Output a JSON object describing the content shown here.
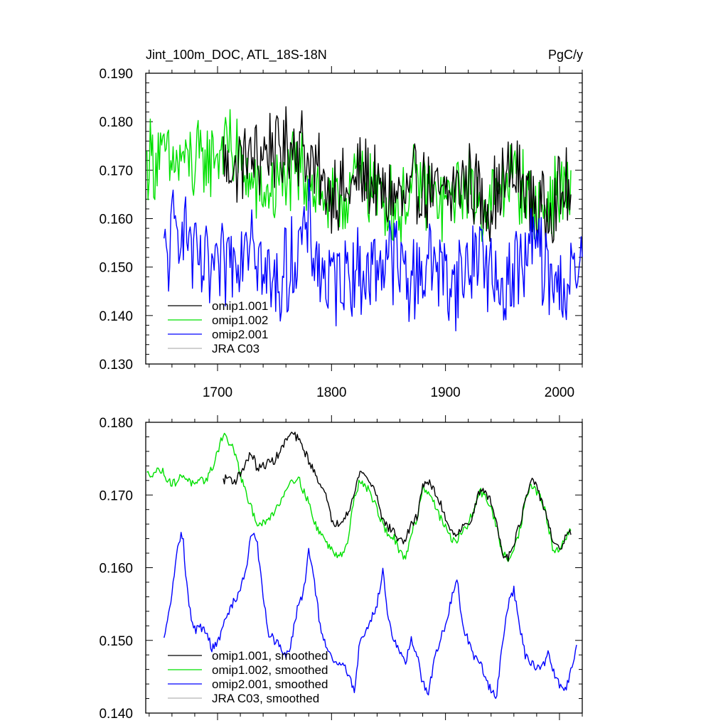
{
  "chart_data": [
    {
      "type": "line",
      "title": "Jint_100m_DOC, ATL_18S-18N",
      "units": "PgC/y",
      "xlabel": "",
      "ylabel": "",
      "xlim": [
        1637,
        2020
      ],
      "ylim": [
        0.13,
        0.19
      ],
      "xticks": [
        1700,
        1800,
        1900,
        2000
      ],
      "xtick_labels": [
        "1700",
        "1800",
        "1900",
        "2000"
      ],
      "yticks": [
        0.13,
        0.14,
        0.15,
        0.16,
        0.17,
        0.18,
        0.19
      ],
      "ytick_labels": [
        "0.130",
        "0.140",
        "0.150",
        "0.160",
        "0.170",
        "0.180",
        "0.190"
      ],
      "legend_position": "bottom-left",
      "legend": [
        "omip1.001",
        "omip1.002",
        "omip2.001",
        "JRA C03"
      ],
      "series": [
        {
          "name": "omip1.001",
          "color": "#000000",
          "start": 1705,
          "end": 2010,
          "x": [
            1705,
            1715,
            1725,
            1735,
            1745,
            1755,
            1765,
            1775,
            1785,
            1795,
            1805,
            1815,
            1825,
            1835,
            1845,
            1855,
            1865,
            1875,
            1885,
            1895,
            1905,
            1915,
            1925,
            1935,
            1945,
            1955,
            1965,
            1975,
            1985,
            1995,
            2005,
            2010
          ],
          "values": [
            0.172,
            0.17,
            0.173,
            0.172,
            0.175,
            0.174,
            0.176,
            0.175,
            0.17,
            0.166,
            0.166,
            0.165,
            0.169,
            0.168,
            0.164,
            0.165,
            0.163,
            0.167,
            0.166,
            0.164,
            0.165,
            0.168,
            0.167,
            0.163,
            0.165,
            0.169,
            0.168,
            0.164,
            0.161,
            0.164,
            0.166,
            0.165
          ]
        },
        {
          "name": "omip1.002",
          "color": "#00e000",
          "start": 1638,
          "end": 2010,
          "x": [
            1638,
            1650,
            1660,
            1670,
            1680,
            1690,
            1700,
            1710,
            1720,
            1730,
            1740,
            1750,
            1760,
            1770,
            1780,
            1790,
            1800,
            1810,
            1820,
            1830,
            1840,
            1850,
            1860,
            1870,
            1880,
            1890,
            1900,
            1910,
            1920,
            1930,
            1940,
            1950,
            1960,
            1970,
            1980,
            1990,
            2000,
            2010
          ],
          "values": [
            0.172,
            0.173,
            0.171,
            0.172,
            0.171,
            0.172,
            0.174,
            0.176,
            0.171,
            0.167,
            0.165,
            0.166,
            0.168,
            0.17,
            0.169,
            0.165,
            0.162,
            0.164,
            0.168,
            0.169,
            0.165,
            0.164,
            0.162,
            0.166,
            0.167,
            0.164,
            0.163,
            0.166,
            0.167,
            0.163,
            0.163,
            0.167,
            0.169,
            0.166,
            0.162,
            0.163,
            0.166,
            0.166
          ]
        },
        {
          "name": "omip2.001",
          "color": "#0000ff",
          "start": 1653,
          "end": 2020,
          "x": [
            1653,
            1660,
            1670,
            1680,
            1690,
            1700,
            1710,
            1720,
            1730,
            1740,
            1750,
            1760,
            1770,
            1780,
            1790,
            1800,
            1810,
            1820,
            1830,
            1840,
            1850,
            1860,
            1870,
            1880,
            1890,
            1900,
            1910,
            1920,
            1930,
            1940,
            1950,
            1960,
            1970,
            1980,
            1990,
            2000,
            2010,
            2020
          ],
          "values": [
            0.15,
            0.156,
            0.16,
            0.151,
            0.149,
            0.148,
            0.152,
            0.154,
            0.16,
            0.148,
            0.146,
            0.149,
            0.153,
            0.158,
            0.149,
            0.146,
            0.149,
            0.15,
            0.148,
            0.151,
            0.153,
            0.15,
            0.147,
            0.15,
            0.152,
            0.148,
            0.147,
            0.15,
            0.155,
            0.147,
            0.146,
            0.149,
            0.151,
            0.156,
            0.147,
            0.146,
            0.147,
            0.149
          ]
        },
        {
          "name": "JRA C03",
          "color": "#b4b4b4",
          "values": []
        }
      ]
    },
    {
      "type": "line",
      "title": "",
      "xlabel": "",
      "ylabel": "",
      "xlim": [
        1637,
        2020
      ],
      "ylim": [
        0.14,
        0.18
      ],
      "xticks": [
        1700,
        1800,
        1900,
        2000
      ],
      "yticks": [
        0.14,
        0.15,
        0.16,
        0.17,
        0.18
      ],
      "ytick_labels": [
        "0.140",
        "0.150",
        "0.160",
        "0.170",
        "0.180"
      ],
      "legend_position": "bottom-left",
      "legend": [
        "omip1.001, smoothed",
        "omip1.002, smoothed",
        "omip2.001, smoothed",
        "JRA C03, smoothed"
      ],
      "series": [
        {
          "name": "omip1.001, smoothed",
          "color": "#000000",
          "x": [
            1705,
            1710,
            1715,
            1720,
            1725,
            1730,
            1735,
            1740,
            1745,
            1750,
            1755,
            1760,
            1765,
            1770,
            1775,
            1780,
            1785,
            1790,
            1795,
            1800,
            1805,
            1810,
            1815,
            1820,
            1825,
            1830,
            1835,
            1840,
            1845,
            1850,
            1855,
            1860,
            1865,
            1870,
            1875,
            1880,
            1885,
            1890,
            1895,
            1900,
            1905,
            1910,
            1915,
            1920,
            1925,
            1930,
            1935,
            1940,
            1945,
            1950,
            1955,
            1960,
            1965,
            1970,
            1975,
            1980,
            1985,
            1990,
            1995,
            2000,
            2005,
            2010
          ],
          "values": [
            0.172,
            0.1725,
            0.1718,
            0.173,
            0.1745,
            0.1758,
            0.1735,
            0.174,
            0.1745,
            0.1748,
            0.176,
            0.1775,
            0.1785,
            0.1778,
            0.1765,
            0.1748,
            0.173,
            0.1718,
            0.1698,
            0.1665,
            0.166,
            0.1668,
            0.168,
            0.17,
            0.1735,
            0.1725,
            0.1715,
            0.17,
            0.1665,
            0.1655,
            0.165,
            0.1635,
            0.164,
            0.1658,
            0.167,
            0.1715,
            0.1718,
            0.1705,
            0.169,
            0.167,
            0.165,
            0.1648,
            0.1655,
            0.166,
            0.1678,
            0.1705,
            0.1705,
            0.169,
            0.166,
            0.162,
            0.1615,
            0.1635,
            0.1658,
            0.169,
            0.172,
            0.171,
            0.169,
            0.1665,
            0.163,
            0.1625,
            0.164,
            0.165
          ]
        },
        {
          "name": "omip1.002, smoothed",
          "color": "#00e000",
          "x": [
            1638,
            1645,
            1650,
            1655,
            1660,
            1665,
            1670,
            1675,
            1680,
            1685,
            1690,
            1695,
            1700,
            1705,
            1710,
            1715,
            1720,
            1725,
            1730,
            1735,
            1740,
            1745,
            1750,
            1755,
            1760,
            1765,
            1770,
            1775,
            1780,
            1785,
            1790,
            1795,
            1800,
            1805,
            1810,
            1815,
            1820,
            1825,
            1830,
            1835,
            1840,
            1845,
            1850,
            1855,
            1860,
            1865,
            1870,
            1875,
            1880,
            1885,
            1890,
            1895,
            1900,
            1905,
            1910,
            1915,
            1920,
            1925,
            1930,
            1935,
            1940,
            1945,
            1950,
            1955,
            1960,
            1965,
            1970,
            1975,
            1980,
            1985,
            1990,
            1995,
            2000,
            2005,
            2010
          ],
          "values": [
            0.1728,
            0.1732,
            0.1735,
            0.1725,
            0.1715,
            0.172,
            0.1728,
            0.172,
            0.1712,
            0.1718,
            0.1722,
            0.1735,
            0.176,
            0.1785,
            0.1772,
            0.176,
            0.1728,
            0.17,
            0.168,
            0.1662,
            0.166,
            0.1665,
            0.168,
            0.169,
            0.171,
            0.172,
            0.1725,
            0.1708,
            0.169,
            0.166,
            0.165,
            0.1635,
            0.1625,
            0.1618,
            0.1622,
            0.164,
            0.17,
            0.172,
            0.1712,
            0.17,
            0.168,
            0.166,
            0.1645,
            0.164,
            0.162,
            0.161,
            0.165,
            0.1668,
            0.171,
            0.1705,
            0.169,
            0.167,
            0.1655,
            0.164,
            0.1638,
            0.1648,
            0.166,
            0.168,
            0.1705,
            0.17,
            0.168,
            0.1655,
            0.162,
            0.161,
            0.163,
            0.165,
            0.169,
            0.1715,
            0.1705,
            0.169,
            0.166,
            0.162,
            0.1625,
            0.164,
            0.165
          ]
        },
        {
          "name": "omip2.001, smoothed",
          "color": "#0000ff",
          "x": [
            1653,
            1656,
            1659,
            1662,
            1665,
            1668,
            1670,
            1672,
            1675,
            1678,
            1681,
            1684,
            1687,
            1690,
            1695,
            1700,
            1705,
            1710,
            1715,
            1720,
            1725,
            1730,
            1735,
            1740,
            1745,
            1750,
            1755,
            1760,
            1765,
            1770,
            1775,
            1780,
            1785,
            1790,
            1795,
            1800,
            1805,
            1810,
            1815,
            1820,
            1825,
            1830,
            1835,
            1840,
            1845,
            1850,
            1855,
            1860,
            1865,
            1870,
            1875,
            1880,
            1885,
            1890,
            1895,
            1900,
            1905,
            1910,
            1915,
            1920,
            1925,
            1930,
            1935,
            1940,
            1945,
            1950,
            1955,
            1960,
            1965,
            1970,
            1975,
            1980,
            1985,
            1990,
            1995,
            2000,
            2005,
            2010,
            2015
          ],
          "values": [
            0.15,
            0.1525,
            0.1555,
            0.159,
            0.1625,
            0.1648,
            0.164,
            0.159,
            0.155,
            0.152,
            0.1515,
            0.152,
            0.1515,
            0.151,
            0.149,
            0.1495,
            0.152,
            0.154,
            0.1555,
            0.157,
            0.16,
            0.165,
            0.163,
            0.156,
            0.151,
            0.15,
            0.149,
            0.1475,
            0.15,
            0.1545,
            0.156,
            0.1625,
            0.158,
            0.152,
            0.149,
            0.1475,
            0.1465,
            0.147,
            0.145,
            0.1432,
            0.15,
            0.151,
            0.153,
            0.155,
            0.1595,
            0.153,
            0.15,
            0.148,
            0.147,
            0.15,
            0.148,
            0.144,
            0.143,
            0.147,
            0.15,
            0.152,
            0.1555,
            0.1585,
            0.152,
            0.15,
            0.1475,
            0.147,
            0.145,
            0.143,
            0.1425,
            0.15,
            0.155,
            0.157,
            0.152,
            0.148,
            0.147,
            0.146,
            0.1465,
            0.148,
            0.1455,
            0.144,
            0.143,
            0.146,
            0.1492
          ]
        },
        {
          "name": "JRA C03, smoothed",
          "color": "#b4b4b4",
          "values": []
        }
      ]
    }
  ]
}
